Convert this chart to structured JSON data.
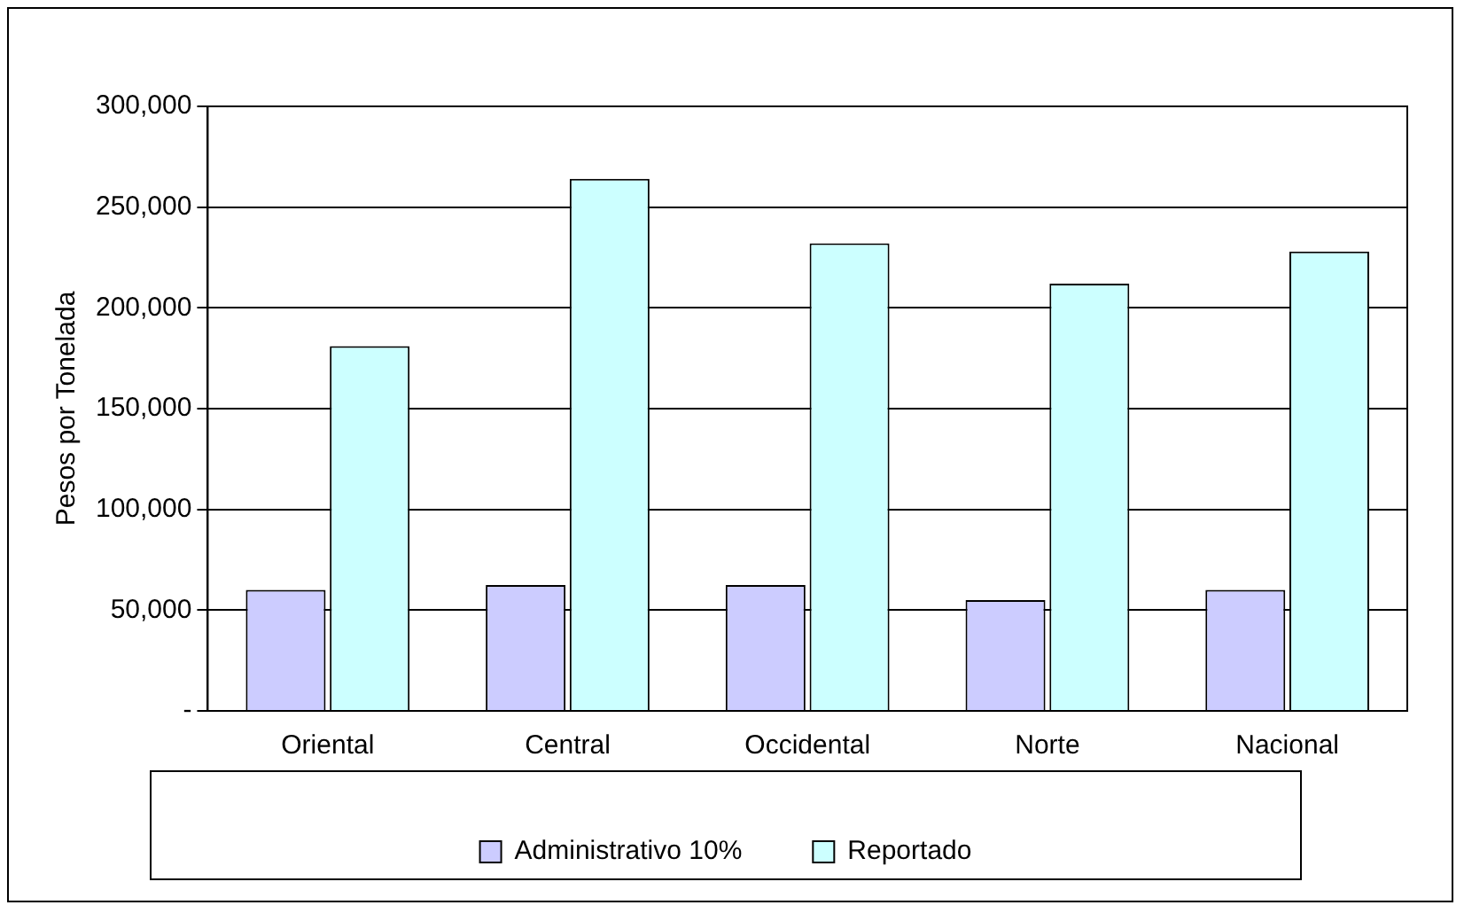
{
  "chart_data": {
    "type": "bar",
    "ylabel": "Pesos por Tonelada",
    "categories": [
      "Oriental",
      "Central",
      "Occidental",
      "Norte",
      "Nacional"
    ],
    "series": [
      {
        "name": "Administrativo 10%",
        "color": "#ccccff",
        "values": [
          60000,
          62500,
          62500,
          55000,
          60000
        ]
      },
      {
        "name": "Reportado",
        "color": "#ccffff",
        "values": [
          181000,
          264000,
          232000,
          212000,
          228000
        ]
      }
    ],
    "ylim": [
      0,
      300000
    ],
    "yticks": [
      {
        "value": 0,
        "label": "-"
      },
      {
        "value": 50000,
        "label": "50,000"
      },
      {
        "value": 100000,
        "label": "100,000"
      },
      {
        "value": 150000,
        "label": "150,000"
      },
      {
        "value": 200000,
        "label": "200,000"
      },
      {
        "value": 250000,
        "label": "250,000"
      },
      {
        "value": 300000,
        "label": "300,000"
      }
    ],
    "grid": "y",
    "legend": "bottom"
  }
}
